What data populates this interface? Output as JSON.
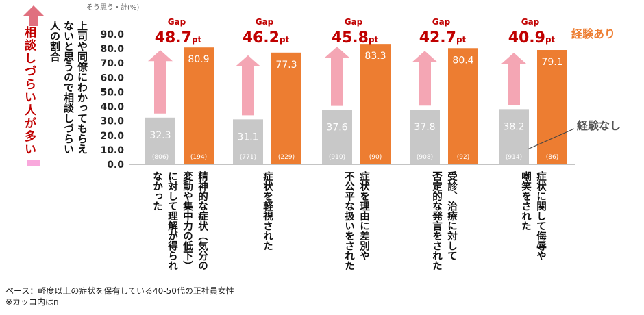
{
  "side_hint": {
    "label": "相談しづらい人が多い",
    "arrow_color": "#e0707f",
    "box_color": "#f9a8dc"
  },
  "y_axis_label": "上司や同僚にわかってもらえないと思うので相談しづらい人の割合",
  "y_axis_unit": "そう思う・計(%)",
  "legend": {
    "with_experience": "経験あり",
    "without_experience": "経験なし"
  },
  "footer": {
    "base_note": "ベース：軽度以上の症状を保有している40-50代の正社員女性",
    "n_note": "※カッコ内はn"
  },
  "chart_data": {
    "type": "bar",
    "ylim": [
      0,
      90
    ],
    "yticks": [
      "0.0",
      "10.0",
      "20.0",
      "30.0",
      "40.0",
      "50.0",
      "60.0",
      "70.0",
      "80.0",
      "90.0"
    ],
    "categories": [
      "精神的な症状（気分の変動や集中力の低下）に対して理解が得られなかった",
      "症状を軽視された",
      "症状を理由に差別や不公平な扱いをされた",
      "受診、治療に対して否定的な発言をされた",
      "症状に関して侮辱や嘲笑をされた"
    ],
    "category_lines": [
      [
        "精神的な症状（気分の",
        "変動や集中力の低下）",
        "に対して理解が得られ",
        "なかった"
      ],
      [
        "症状を軽視された"
      ],
      [
        "症状を理由に差別や",
        "不公平な扱いをされた"
      ],
      [
        "受診、治療に対して",
        "否定的な発言をされた"
      ],
      [
        "症状に関して侮辱や",
        "嘲笑をされた"
      ]
    ],
    "series": [
      {
        "name": "経験なし",
        "color": "#c8c8c8",
        "values": [
          32.3,
          31.1,
          37.6,
          37.8,
          38.2
        ],
        "labels": [
          "32.3",
          "31.1",
          "37.6",
          "37.8",
          "38.2"
        ],
        "n": [
          "(806)",
          "(771)",
          "(910)",
          "(908)",
          "(914)"
        ]
      },
      {
        "name": "経験あり",
        "color": "#ed7d31",
        "values": [
          80.9,
          77.3,
          83.3,
          80.4,
          79.1
        ],
        "labels": [
          "80.9",
          "77.3",
          "83.3",
          "80.4",
          "79.1"
        ],
        "n": [
          "(194)",
          "(229)",
          "(90)",
          "(92)",
          "(86)"
        ]
      }
    ],
    "gap_label": "Gap",
    "gap_unit": "pt",
    "gaps": [
      "48.7",
      "46.2",
      "45.8",
      "42.7",
      "40.9"
    ],
    "gap_color": "#c00000",
    "gap_arrow_color": "#f4a6b4"
  }
}
